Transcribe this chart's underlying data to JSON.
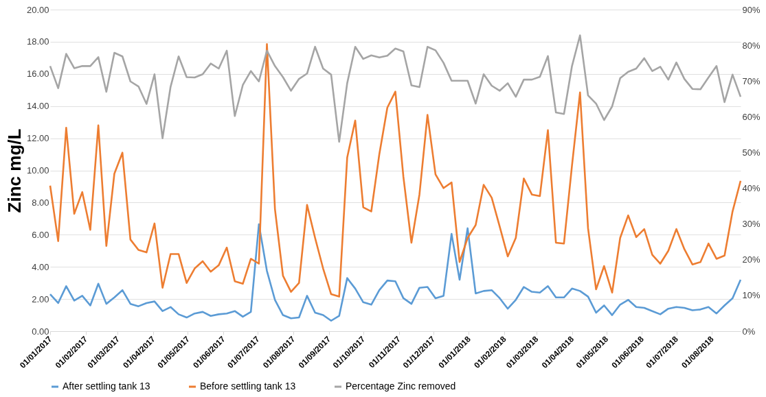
{
  "chart_data": {
    "type": "line",
    "ylabel": "Zinc mg/L",
    "grid": "y",
    "legend": "bottom",
    "marker": "none",
    "line_style": "solid",
    "xlim": [
      "2017-01-01",
      "2018-08-26"
    ],
    "xticks": [
      {
        "value": "2017-01-01",
        "label": "01/01/2017"
      },
      {
        "value": "2017-02-01",
        "label": "01/02/2017"
      },
      {
        "value": "2017-03-01",
        "label": "01/03/2017"
      },
      {
        "value": "2017-04-01",
        "label": "01/04/2017"
      },
      {
        "value": "2017-05-01",
        "label": "01/05/2017"
      },
      {
        "value": "2017-06-01",
        "label": "01/06/2017"
      },
      {
        "value": "2017-07-01",
        "label": "01/07/2017"
      },
      {
        "value": "2017-08-01",
        "label": "01/08/2017"
      },
      {
        "value": "2017-09-01",
        "label": "01/09/2017"
      },
      {
        "value": "2017-10-01",
        "label": "01/10/2017"
      },
      {
        "value": "2017-11-01",
        "label": "01/11/2017"
      },
      {
        "value": "2017-12-01",
        "label": "01/12/2017"
      },
      {
        "value": "2018-01-01",
        "label": "01/01/2018"
      },
      {
        "value": "2018-02-01",
        "label": "01/02/2018"
      },
      {
        "value": "2018-03-01",
        "label": "01/03/2018"
      },
      {
        "value": "2018-04-01",
        "label": "01/04/2018"
      },
      {
        "value": "2018-05-01",
        "label": "01/05/2018"
      },
      {
        "value": "2018-06-01",
        "label": "01/06/2018"
      },
      {
        "value": "2018-07-01",
        "label": "01/07/2018"
      },
      {
        "value": "2018-08-01",
        "label": "01/08/2018"
      }
    ],
    "ylim": [
      0,
      20
    ],
    "yticks": [
      {
        "value": 0,
        "label": "0.00"
      },
      {
        "value": 2,
        "label": "2.00"
      },
      {
        "value": 4,
        "label": "4.00"
      },
      {
        "value": 6,
        "label": "6.00"
      },
      {
        "value": 8,
        "label": "8.00"
      },
      {
        "value": 10,
        "label": "10.00"
      },
      {
        "value": 12,
        "label": "12.00"
      },
      {
        "value": 14,
        "label": "14.00"
      },
      {
        "value": 16,
        "label": "16.00"
      },
      {
        "value": 18,
        "label": "18.00"
      },
      {
        "value": 20,
        "label": "20.00"
      }
    ],
    "y2lim": [
      0,
      90
    ],
    "y2ticks": [
      {
        "value": 0,
        "label": "0%"
      },
      {
        "value": 10,
        "label": "10%"
      },
      {
        "value": 20,
        "label": "20%"
      },
      {
        "value": 30,
        "label": "30%"
      },
      {
        "value": 40,
        "label": "40%"
      },
      {
        "value": 50,
        "label": "50%"
      },
      {
        "value": 60,
        "label": "60%"
      },
      {
        "value": 70,
        "label": "70%"
      },
      {
        "value": 80,
        "label": "80%"
      },
      {
        "value": 90,
        "label": "90%"
      }
    ],
    "x": [
      "2017-01-01",
      "2017-01-08",
      "2017-01-15",
      "2017-01-22",
      "2017-01-29",
      "2017-02-05",
      "2017-02-12",
      "2017-02-19",
      "2017-02-26",
      "2017-03-05",
      "2017-03-12",
      "2017-03-19",
      "2017-03-26",
      "2017-04-02",
      "2017-04-09",
      "2017-04-16",
      "2017-04-23",
      "2017-04-30",
      "2017-05-07",
      "2017-05-14",
      "2017-05-21",
      "2017-05-28",
      "2017-06-04",
      "2017-06-11",
      "2017-06-18",
      "2017-06-25",
      "2017-07-02",
      "2017-07-09",
      "2017-07-16",
      "2017-07-23",
      "2017-07-30",
      "2017-08-06",
      "2017-08-13",
      "2017-08-20",
      "2017-08-27",
      "2017-09-03",
      "2017-09-10",
      "2017-09-17",
      "2017-09-24",
      "2017-10-01",
      "2017-10-08",
      "2017-10-15",
      "2017-10-22",
      "2017-10-29",
      "2017-11-05",
      "2017-11-12",
      "2017-11-19",
      "2017-11-26",
      "2017-12-03",
      "2017-12-10",
      "2017-12-17",
      "2017-12-24",
      "2017-12-31",
      "2018-01-07",
      "2018-01-14",
      "2018-01-21",
      "2018-01-28",
      "2018-02-04",
      "2018-02-11",
      "2018-02-18",
      "2018-02-25",
      "2018-03-04",
      "2018-03-11",
      "2018-03-18",
      "2018-03-25",
      "2018-04-01",
      "2018-04-08",
      "2018-04-15",
      "2018-04-22",
      "2018-04-29",
      "2018-05-06",
      "2018-05-13",
      "2018-05-20",
      "2018-05-27",
      "2018-06-03",
      "2018-06-10",
      "2018-06-17",
      "2018-06-24",
      "2018-07-01",
      "2018-07-08",
      "2018-07-15",
      "2018-07-22",
      "2018-07-29",
      "2018-08-05",
      "2018-08-12",
      "2018-08-19",
      "2018-08-26"
    ],
    "series": [
      {
        "name": "After settling tank 13",
        "color": "#5b9bd5",
        "values": [
          2.3,
          1.75,
          2.8,
          1.9,
          2.2,
          1.6,
          2.95,
          1.7,
          2.1,
          2.55,
          1.7,
          1.55,
          1.75,
          1.85,
          1.25,
          1.5,
          1.05,
          0.85,
          1.1,
          1.2,
          0.95,
          1.05,
          1.1,
          1.25,
          0.9,
          1.2,
          6.65,
          3.75,
          1.95,
          1.0,
          0.8,
          0.85,
          2.2,
          1.15,
          1.0,
          0.65,
          0.95,
          3.3,
          2.65,
          1.8,
          1.65,
          2.55,
          3.15,
          3.1,
          2.05,
          1.7,
          2.7,
          2.75,
          2.05,
          2.2,
          6.05,
          3.2,
          6.4,
          2.35,
          2.5,
          2.55,
          2.05,
          1.4,
          1.95,
          2.75,
          2.45,
          2.4,
          2.8,
          2.1,
          2.1,
          2.65,
          2.5,
          2.15,
          1.15,
          1.6,
          1.0,
          1.65,
          1.95,
          1.5,
          1.45,
          1.25,
          1.05,
          1.4,
          1.5,
          1.45,
          1.3,
          1.35,
          1.5,
          1.1,
          1.6,
          2.05,
          3.2
        ]
      },
      {
        "name": "Before settling tank 13",
        "color": "#ed7d31",
        "values": [
          9.05,
          5.6,
          12.65,
          7.3,
          8.65,
          6.3,
          12.8,
          5.3,
          9.8,
          11.1,
          5.7,
          5.05,
          4.9,
          6.7,
          2.7,
          4.8,
          4.8,
          3.0,
          3.9,
          4.35,
          3.7,
          4.1,
          5.2,
          3.1,
          2.95,
          4.5,
          4.2,
          17.85,
          7.6,
          3.45,
          2.45,
          3.0,
          7.85,
          5.8,
          3.9,
          2.3,
          2.15,
          10.8,
          13.1,
          7.7,
          7.45,
          11.0,
          13.9,
          14.9,
          9.6,
          5.5,
          8.5,
          13.45,
          9.75,
          8.9,
          9.25,
          4.3,
          5.8,
          6.6,
          9.1,
          8.3,
          6.5,
          4.65,
          5.8,
          9.5,
          8.5,
          8.4,
          12.5,
          5.5,
          5.45,
          10.3,
          14.85,
          6.4,
          2.6,
          4.05,
          2.4,
          5.8,
          7.2,
          5.85,
          6.35,
          4.75,
          4.2,
          5.0,
          6.35,
          5.1,
          4.15,
          4.3,
          5.45,
          4.5,
          4.7,
          7.45,
          9.35
        ]
      },
      {
        "name": "Percentage Zinc removed",
        "color": "#a5a5a5",
        "axis": "y2",
        "values": [
          74.2,
          68.0,
          77.6,
          73.6,
          74.2,
          74.2,
          76.7,
          67.0,
          77.9,
          76.9,
          69.9,
          68.5,
          63.6,
          71.9,
          54.0,
          68.4,
          76.9,
          71.1,
          71.0,
          71.9,
          74.9,
          73.5,
          78.5,
          60.2,
          68.9,
          72.8,
          69.9,
          78.5,
          74.2,
          71.1,
          67.3,
          70.6,
          72.1,
          79.6,
          73.5,
          71.8,
          53.0,
          69.4,
          79.6,
          76.2,
          77.2,
          76.6,
          77.1,
          79.1,
          78.3,
          68.8,
          68.3,
          79.6,
          78.6,
          75.1,
          70.1,
          70.1,
          70.1,
          63.7,
          71.9,
          68.7,
          67.3,
          69.4,
          65.6,
          70.4,
          70.4,
          71.2,
          77.0,
          61.2,
          60.8,
          74.2,
          82.8,
          66.0,
          63.7,
          59.1,
          62.9,
          70.8,
          72.6,
          73.5,
          76.4,
          72.8,
          74.0,
          70.4,
          75.2,
          70.6,
          67.8,
          67.7,
          71.0,
          74.2,
          64.1,
          71.8,
          65.6
        ]
      }
    ]
  }
}
